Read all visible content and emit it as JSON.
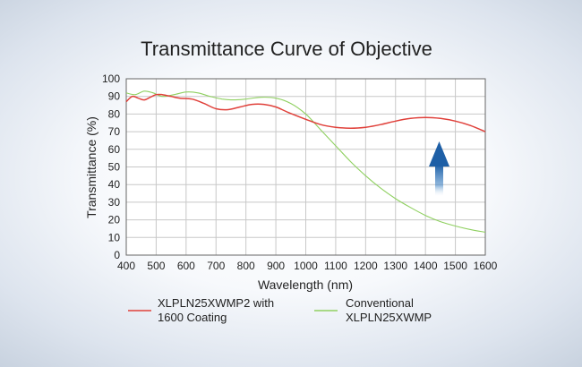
{
  "chart_data": {
    "type": "line",
    "title": "Transmittance Curve of Objective",
    "xlabel": "Wavelength (nm)",
    "ylabel": "Transmittance (%)",
    "xlim": [
      400,
      1600
    ],
    "ylim": [
      0,
      100
    ],
    "x_ticks": [
      400,
      500,
      600,
      700,
      800,
      900,
      1000,
      1100,
      1200,
      1300,
      1400,
      1500,
      1600
    ],
    "y_ticks": [
      0,
      10,
      20,
      30,
      40,
      50,
      60,
      70,
      80,
      90,
      100
    ],
    "grid": true,
    "legend_position": "bottom",
    "annotation": "up-arrow",
    "series": [
      {
        "name_lines": [
          "XLPLN25XWMP2 with",
          "1600 Coating"
        ],
        "color": "#e0403a",
        "points": [
          [
            400,
            87
          ],
          [
            420,
            90
          ],
          [
            440,
            89
          ],
          [
            460,
            88
          ],
          [
            480,
            89.5
          ],
          [
            500,
            91
          ],
          [
            520,
            91
          ],
          [
            550,
            90
          ],
          [
            580,
            89
          ],
          [
            620,
            88.5
          ],
          [
            660,
            86
          ],
          [
            700,
            83
          ],
          [
            740,
            82.5
          ],
          [
            780,
            84
          ],
          [
            820,
            85.5
          ],
          [
            860,
            85.5
          ],
          [
            900,
            84
          ],
          [
            940,
            81
          ],
          [
            1000,
            77
          ],
          [
            1050,
            74
          ],
          [
            1100,
            72.5
          ],
          [
            1150,
            72
          ],
          [
            1200,
            72.5
          ],
          [
            1250,
            74
          ],
          [
            1300,
            76
          ],
          [
            1350,
            77.5
          ],
          [
            1400,
            78
          ],
          [
            1450,
            77.5
          ],
          [
            1500,
            76
          ],
          [
            1550,
            73.5
          ],
          [
            1600,
            70
          ]
        ]
      },
      {
        "name_lines": [
          "Conventional",
          "XLPLN25XWMP"
        ],
        "color": "#8fd060",
        "points": [
          [
            400,
            92
          ],
          [
            430,
            91
          ],
          [
            460,
            93
          ],
          [
            490,
            92
          ],
          [
            520,
            90
          ],
          [
            560,
            91
          ],
          [
            600,
            92.5
          ],
          [
            640,
            92
          ],
          [
            680,
            90
          ],
          [
            720,
            88.5
          ],
          [
            760,
            88
          ],
          [
            800,
            88.5
          ],
          [
            850,
            89.5
          ],
          [
            900,
            89
          ],
          [
            950,
            86
          ],
          [
            1000,
            80
          ],
          [
            1050,
            71
          ],
          [
            1100,
            62
          ],
          [
            1150,
            53
          ],
          [
            1200,
            45
          ],
          [
            1250,
            38
          ],
          [
            1300,
            32
          ],
          [
            1350,
            27
          ],
          [
            1400,
            22.5
          ],
          [
            1450,
            19
          ],
          [
            1500,
            16.5
          ],
          [
            1550,
            14.5
          ],
          [
            1600,
            13
          ]
        ]
      }
    ]
  }
}
